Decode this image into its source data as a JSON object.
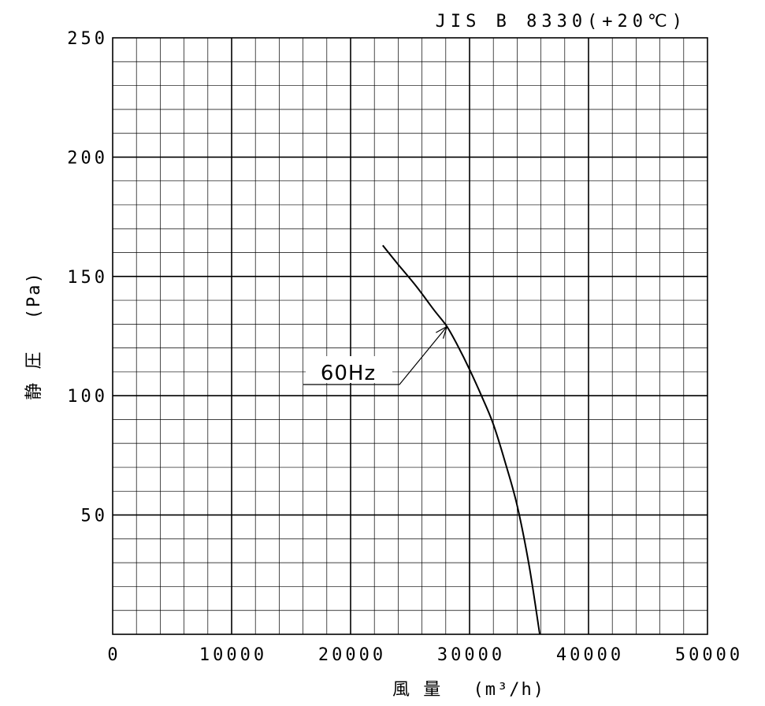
{
  "chart_data": {
    "type": "line",
    "standard_label": "JIS B 8330(+20℃)",
    "xlabel": "風 量　 (m³/h)",
    "ylabel": "静 圧　 (Pa)",
    "xlim": [
      0,
      50000
    ],
    "ylim": [
      0,
      250
    ],
    "x_ticks": [
      0,
      10000,
      20000,
      30000,
      40000,
      50000
    ],
    "x_tick_labels": [
      "0",
      "10000",
      "20000",
      "30000",
      "40000",
      "50000"
    ],
    "y_ticks": [
      50,
      100,
      150,
      200,
      250
    ],
    "y_tick_labels": [
      "50",
      "100",
      "150",
      "200",
      "250"
    ],
    "grid": true,
    "minor_grid": {
      "x_step": 2000,
      "y_step": 10
    },
    "series": [
      {
        "name": "60Hz",
        "x": [
          22700,
          24000,
          25500,
          27000,
          28100,
          29000,
          30000,
          31000,
          32000,
          33000,
          34000,
          35000,
          35900
        ],
        "y": [
          163,
          155,
          146,
          136,
          129,
          121,
          111,
          100,
          88,
          72,
          54,
          29,
          0
        ]
      }
    ],
    "annotation": {
      "text": "60Hz",
      "target": [
        28100,
        129
      ]
    },
    "line_color": "#000000"
  }
}
